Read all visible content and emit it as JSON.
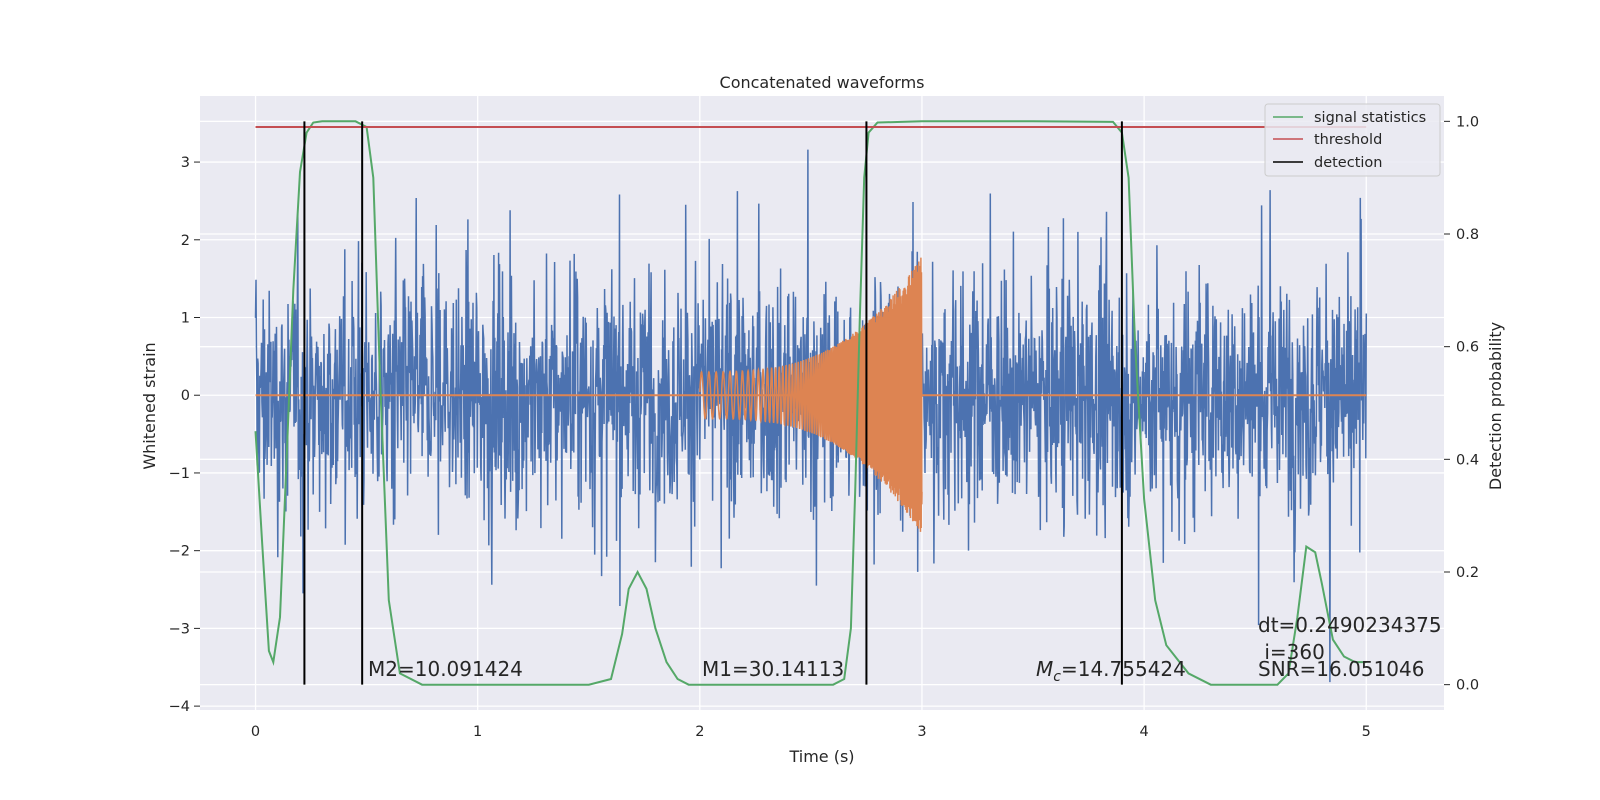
{
  "chart_data": {
    "type": "line",
    "title": "Concatenated waveforms",
    "xlabel": "Time (s)",
    "ylabel": "Whitened strain",
    "ylabel_right": "Detection probability",
    "xlim": [
      -0.25,
      5.35
    ],
    "ylim": [
      -4.05,
      3.85
    ],
    "ylim_right": [
      -0.045,
      1.045
    ],
    "grid": true,
    "legend_position": "top-right",
    "xticks": [
      0,
      1,
      2,
      3,
      4,
      5
    ],
    "xtick_labels": [
      "0",
      "1",
      "2",
      "3",
      "4",
      "5"
    ],
    "yticks": [
      -4,
      -3,
      -2,
      -1,
      0,
      1,
      2,
      3
    ],
    "ytick_labels": [
      "−4",
      "−3",
      "−2",
      "−1",
      "0",
      "1",
      "2",
      "3"
    ],
    "yticks_right": [
      0.0,
      0.2,
      0.4,
      0.6,
      0.8,
      1.0
    ],
    "ytick_labels_right": [
      "0.0",
      "0.2",
      "0.4",
      "0.6",
      "0.8",
      "1.0"
    ],
    "noise": {
      "axis": "left",
      "x_range": [
        0,
        5
      ],
      "typical_envelope": 1.6,
      "max_peak": 3.5,
      "min_trough": -3.7,
      "color": "#4c72b0"
    },
    "injected_signal": {
      "axis": "left",
      "x_start": 2.0,
      "x_end": 3.0,
      "amp_start": 0.3,
      "amp_end": 1.8,
      "color": "#dd8452"
    },
    "zero_line": {
      "axis": "left",
      "x_range": [
        0,
        5
      ],
      "y": 0,
      "color": "#dd8452"
    },
    "series": [
      {
        "name": "signal statistics",
        "axis": "right",
        "color": "#55a868",
        "x": [
          0.0,
          0.03,
          0.06,
          0.08,
          0.11,
          0.14,
          0.17,
          0.2,
          0.23,
          0.26,
          0.3,
          0.45,
          0.5,
          0.53,
          0.56,
          0.6,
          0.65,
          0.75,
          1.5,
          1.6,
          1.65,
          1.68,
          1.72,
          1.76,
          1.8,
          1.85,
          1.9,
          1.95,
          2.0,
          2.6,
          2.65,
          2.68,
          2.7,
          2.72,
          2.74,
          2.76,
          2.8,
          3.0,
          3.5,
          3.86,
          3.9,
          3.93,
          3.96,
          4.0,
          4.05,
          4.1,
          4.2,
          4.3,
          4.6,
          4.65,
          4.69,
          4.73,
          4.77,
          4.8,
          4.85,
          4.9,
          4.95,
          5.0
        ],
        "y": [
          0.45,
          0.25,
          0.06,
          0.04,
          0.12,
          0.4,
          0.7,
          0.91,
          0.98,
          0.998,
          1.0,
          1.0,
          0.99,
          0.9,
          0.55,
          0.15,
          0.02,
          0.0,
          0.0,
          0.01,
          0.09,
          0.17,
          0.2,
          0.17,
          0.1,
          0.04,
          0.01,
          0.0,
          0.0,
          0.0,
          0.01,
          0.1,
          0.35,
          0.65,
          0.9,
          0.98,
          0.998,
          1.0,
          1.0,
          0.999,
          0.98,
          0.9,
          0.6,
          0.33,
          0.15,
          0.07,
          0.02,
          0.0,
          0.0,
          0.02,
          0.12,
          0.245,
          0.235,
          0.18,
          0.08,
          0.05,
          0.04,
          0.04
        ]
      },
      {
        "name": "threshold",
        "axis": "right",
        "color": "#c44e52",
        "x": [
          0,
          5
        ],
        "y": [
          0.99,
          0.99
        ]
      },
      {
        "name": "detection",
        "axis": "right",
        "color": "#000000",
        "x_values": [
          0.22,
          0.48,
          2.75,
          3.9
        ],
        "y_range": [
          0.0,
          1.0
        ]
      }
    ],
    "annotations": [
      {
        "id": "m2",
        "text": "M2=10.091424",
        "x": 0.5,
        "y": -3.45
      },
      {
        "id": "m1",
        "text": "M1=30.14113",
        "x": 2.0,
        "y": -3.45
      },
      {
        "id": "mc",
        "text_prefix": "M",
        "text_sub": "c",
        "text_suffix": "=14.755424",
        "x": 3.5,
        "y": -3.45
      },
      {
        "id": "dt",
        "text": "dt=0.2490234375",
        "x": 4.5,
        "y": -2.95
      },
      {
        "id": "i",
        "text": " i=360",
        "x": 4.5,
        "y": -3.25
      },
      {
        "id": "snr",
        "text": "SNR=16.051046",
        "x": 4.5,
        "y": -3.45
      }
    ],
    "colors": {
      "axes_bg": "#eaeaf2",
      "grid": "#ffffff",
      "text": "#262626"
    }
  }
}
